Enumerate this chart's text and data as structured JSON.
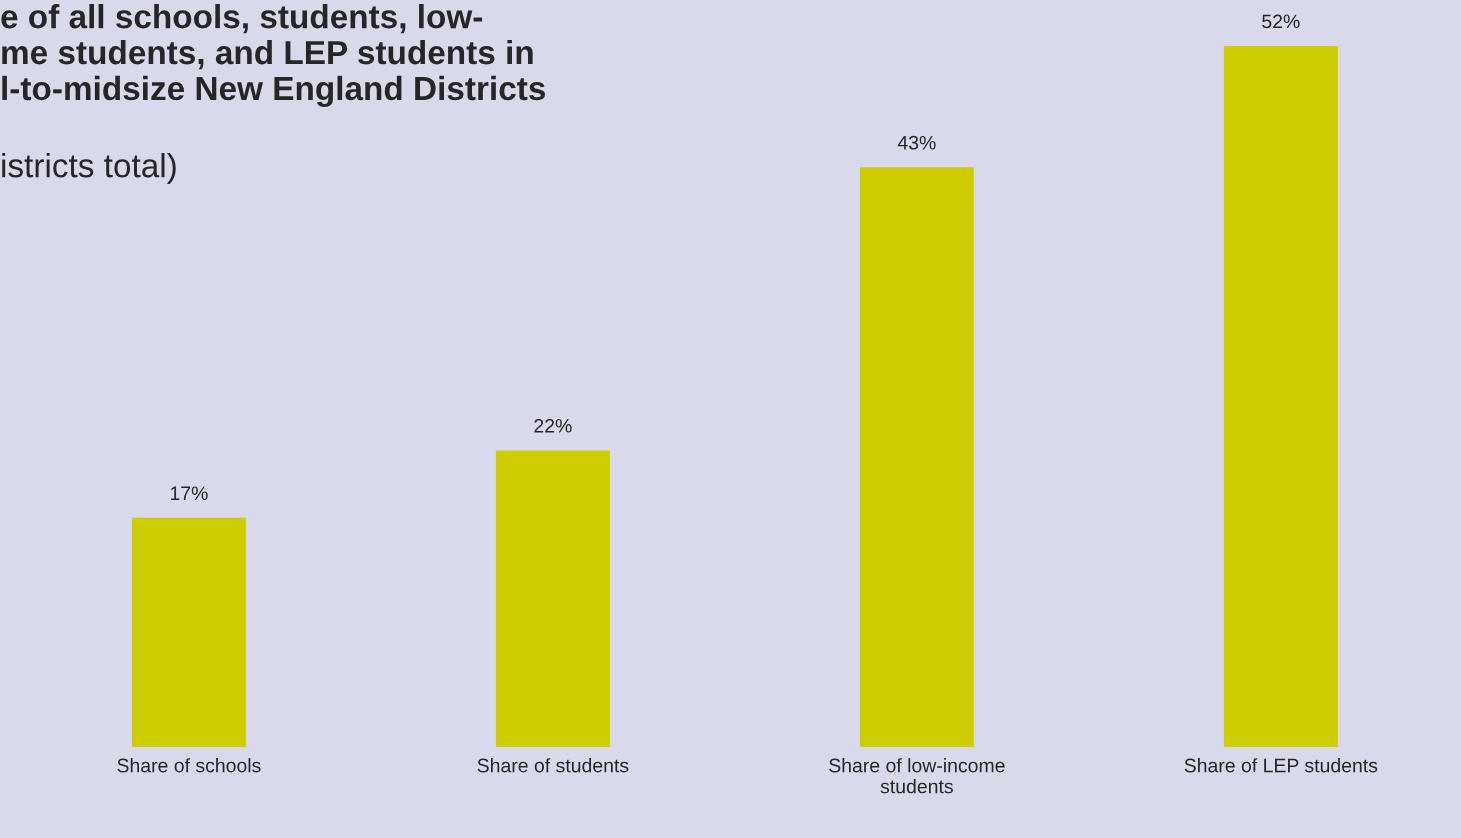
{
  "chart_data": {
    "type": "bar",
    "title": "e of all schools, students, low-\nme students, and LEP students in\nl-to-midsize New England Districts",
    "subtitle": "istricts total)",
    "categories": [
      "Share of schools",
      "Share of students",
      "Share of low-income\nstudents",
      "Share of LEP students"
    ],
    "values": [
      17,
      22,
      43,
      52
    ],
    "value_labels": [
      "17%",
      "22%",
      "43%",
      "52%"
    ],
    "color": "#cccc00",
    "grid": false,
    "legend": false
  }
}
